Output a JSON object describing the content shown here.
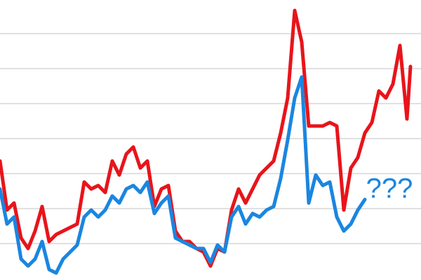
{
  "chart_data": {
    "type": "line",
    "annotation": "???",
    "annotation_color": "#1a86e0",
    "x": [
      0,
      10,
      20,
      30,
      40,
      50,
      60,
      70,
      80,
      90,
      100,
      110,
      120,
      130,
      140,
      150,
      160,
      170,
      180,
      190,
      200,
      210,
      220,
      230,
      240,
      250,
      260,
      270,
      280,
      290,
      300,
      310,
      320,
      330,
      340,
      350,
      360,
      370,
      380,
      390,
      400,
      410,
      420,
      430,
      440,
      450,
      460,
      470,
      480,
      490,
      500,
      510,
      520,
      530,
      540,
      550,
      560,
      570,
      580,
      585
    ],
    "xlim": [
      0,
      600
    ],
    "ylim": [
      0,
      400
    ],
    "yticks": [
      52,
      102,
      152,
      202,
      252,
      302,
      352
    ],
    "grid": true,
    "show_tick_labels": false,
    "series": [
      {
        "color": "#e8141b",
        "values": [
          170,
          100,
          110,
          60,
          45,
          70,
          105,
          55,
          65,
          70,
          75,
          80,
          140,
          130,
          135,
          125,
          170,
          150,
          180,
          190,
          160,
          170,
          105,
          130,
          135,
          70,
          55,
          55,
          45,
          40,
          20,
          45,
          40,
          100,
          130,
          110,
          130,
          150,
          160,
          170,
          210,
          260,
          385,
          340,
          220,
          220,
          220,
          225,
          220,
          100,
          160,
          175,
          210,
          225,
          270,
          260,
          280,
          335,
          230,
          305
        ]
      },
      {
        "color": "#1a86e0",
        "values": [
          130,
          80,
          90,
          30,
          20,
          30,
          55,
          15,
          10,
          30,
          40,
          50,
          90,
          100,
          90,
          100,
          120,
          110,
          130,
          135,
          125,
          140,
          95,
          110,
          120,
          60,
          55,
          50,
          45,
          45,
          25,
          50,
          40,
          90,
          105,
          80,
          95,
          90,
          100,
          105,
          145,
          200,
          260,
          290,
          110,
          150,
          135,
          140,
          90,
          70,
          80,
          100,
          115,
          null,
          null,
          null,
          null,
          null,
          null,
          null
        ]
      }
    ]
  }
}
